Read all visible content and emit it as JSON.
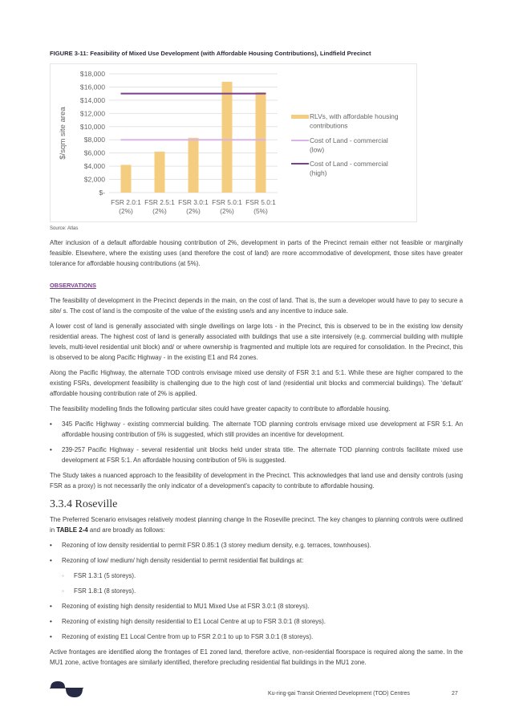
{
  "figure": {
    "title": "FIGURE 3-11: Feasibility of Mixed Use Development (with Affordable Housing Contributions), Lindfield Precinct",
    "source": "Source: Atlas"
  },
  "chart_data": {
    "type": "bar",
    "title": "",
    "ylabel": "$/sqm site area",
    "xlabel": "",
    "ylim": [
      0,
      18000
    ],
    "yticks": [
      "$-",
      "$2,000",
      "$4,000",
      "$6,000",
      "$8,000",
      "$10,000",
      "$12,000",
      "$14,000",
      "$16,000",
      "$18,000"
    ],
    "categories": [
      [
        "FSR 2.0:1",
        "(2%)"
      ],
      [
        "FSR 2.5:1",
        "(2%)"
      ],
      [
        "FSR 3.0:1",
        "(2%)"
      ],
      [
        "FSR 5.0:1",
        "(2%)"
      ],
      [
        "FSR 5.0:1",
        "(5%)"
      ]
    ],
    "grid": true,
    "legend_position": "right",
    "series": [
      {
        "name": "RLVs, with affordable housing contributions",
        "type": "bar",
        "color": "#f5cd80",
        "values": [
          4200,
          6200,
          8300,
          16800,
          15200
        ],
        "legend_lines": [
          "RLVs, with affordable housing",
          "contributions"
        ]
      },
      {
        "name": "Cost of Land - commercial (low)",
        "type": "line",
        "color": "#d9b4e6",
        "values": [
          8000,
          8000,
          8000,
          8000,
          8000
        ],
        "legend_lines": [
          "Cost of Land - commercial",
          "(low)"
        ]
      },
      {
        "name": "Cost of Land - commercial (high)",
        "type": "line",
        "color": "#7b3f8c",
        "values": [
          15000,
          15000,
          15000,
          15000,
          15000
        ],
        "legend_lines": [
          "Cost of Land - commercial",
          "(high)"
        ]
      }
    ]
  },
  "body": {
    "p1": "After inclusion of a default affordable housing contribution of 2%, development in parts of the Precinct remain either not feasible or marginally feasible. Elsewhere, where the existing uses (and therefore the cost of land) are more accommodative of development, those sites have greater tolerance for affordable housing contributions (at 5%).",
    "observations": "OBSERVATIONS",
    "p2": "The feasibility of development in the Precinct depends in the main, on the cost of land. That is, the sum a developer would have to pay to secure a site/ s. The cost of land is the composite of the value of the existing use/s and any incentive to induce sale.",
    "p3": "A lower cost of land is generally associated with single dwellings on large lots - in the Precinct, this is observed to be in the existing low density residential areas. The highest cost of land is generally associated with buildings that use a site intensively (e.g. commercial building with multiple levels, multi-level residential unit block) and/ or where ownership is fragmented and multiple lots are required for consolidation. In the Precinct, this is observed to be along Pacific Highway - in the existing E1 and R4 zones.",
    "p4": "Along the Pacific Highway, the alternate TOD controls envisage mixed use density of FSR 3:1 and 5:1. While these are higher compared to the existing FSRs, development feasibility is challenging due to the high cost of land (residential unit blocks and commercial buildings). The ‘default’ affordable housing contribution rate of 2% is applied.",
    "p5": "The feasibility modelling finds the following particular sites could have greater capacity to contribute to affordable housing.",
    "bullets1": [
      "345 Pacific Highway - existing commercial building. The alternate TOD planning controls envisage mixed use development at FSR 5:1. An affordable housing contribution of 5% is suggested, which still provides an incentive for development.",
      "239-257 Pacific Highway - several residential unit blocks held under strata title. The alternate TOD planning controls facilitate mixed use development at FSR 5:1. An affordable housing contribution of 5% is suggested."
    ],
    "p6": "The Study takes a nuanced approach to the feasibility of development in the Precinct. This acknowledges that land use and density controls (using FSR as a proxy) is not necessarily the only indicator of a development’s capacity to contribute to affordable housing.",
    "heading": "3.3.4 Roseville",
    "p7a": "The Preferred Scenario envisages relatively modest planning change In the Roseville precinct. The key changes to planning controls were outlined in ",
    "p7b": "TABLE 2-4",
    "p7c": " and are broadly as follows:",
    "bullets2": [
      "Rezoning of low density residential to permit FSR 0.85:1 (3 storey medium density, e.g. terraces, townhouses).",
      "Rezoning of low/ medium/ high density residential to permit residential flat buildings at:"
    ],
    "sub_bullets": [
      "FSR 1.3:1 (5 storeys).",
      "FSR 1.8:1 (8 storeys)."
    ],
    "bullets3": [
      "Rezoning of existing high density residential to MU1 Mixed Use at FSR 3.0:1 (8 storeys).",
      "Rezoning of existing high density residential to E1 Local Centre at up to FSR 3.0:1 (8 storeys).",
      "Rezoning of existing E1 Local Centre from up to FSR 2.0:1 to up to FSR 3.0:1 (8 storeys)."
    ],
    "p8": "Active frontages are identified along the frontages of E1 zoned land, therefore active, non-residential floorspace is required along the same. In the MU1 zone, active frontages are similarly identified, therefore precluding residential flat buildings in the MU1 zone."
  },
  "footer": {
    "title": "Ku-ring-gai Transit Oriented Development (TOD) Centres",
    "page": "27",
    "logo_color": "#262a45"
  }
}
